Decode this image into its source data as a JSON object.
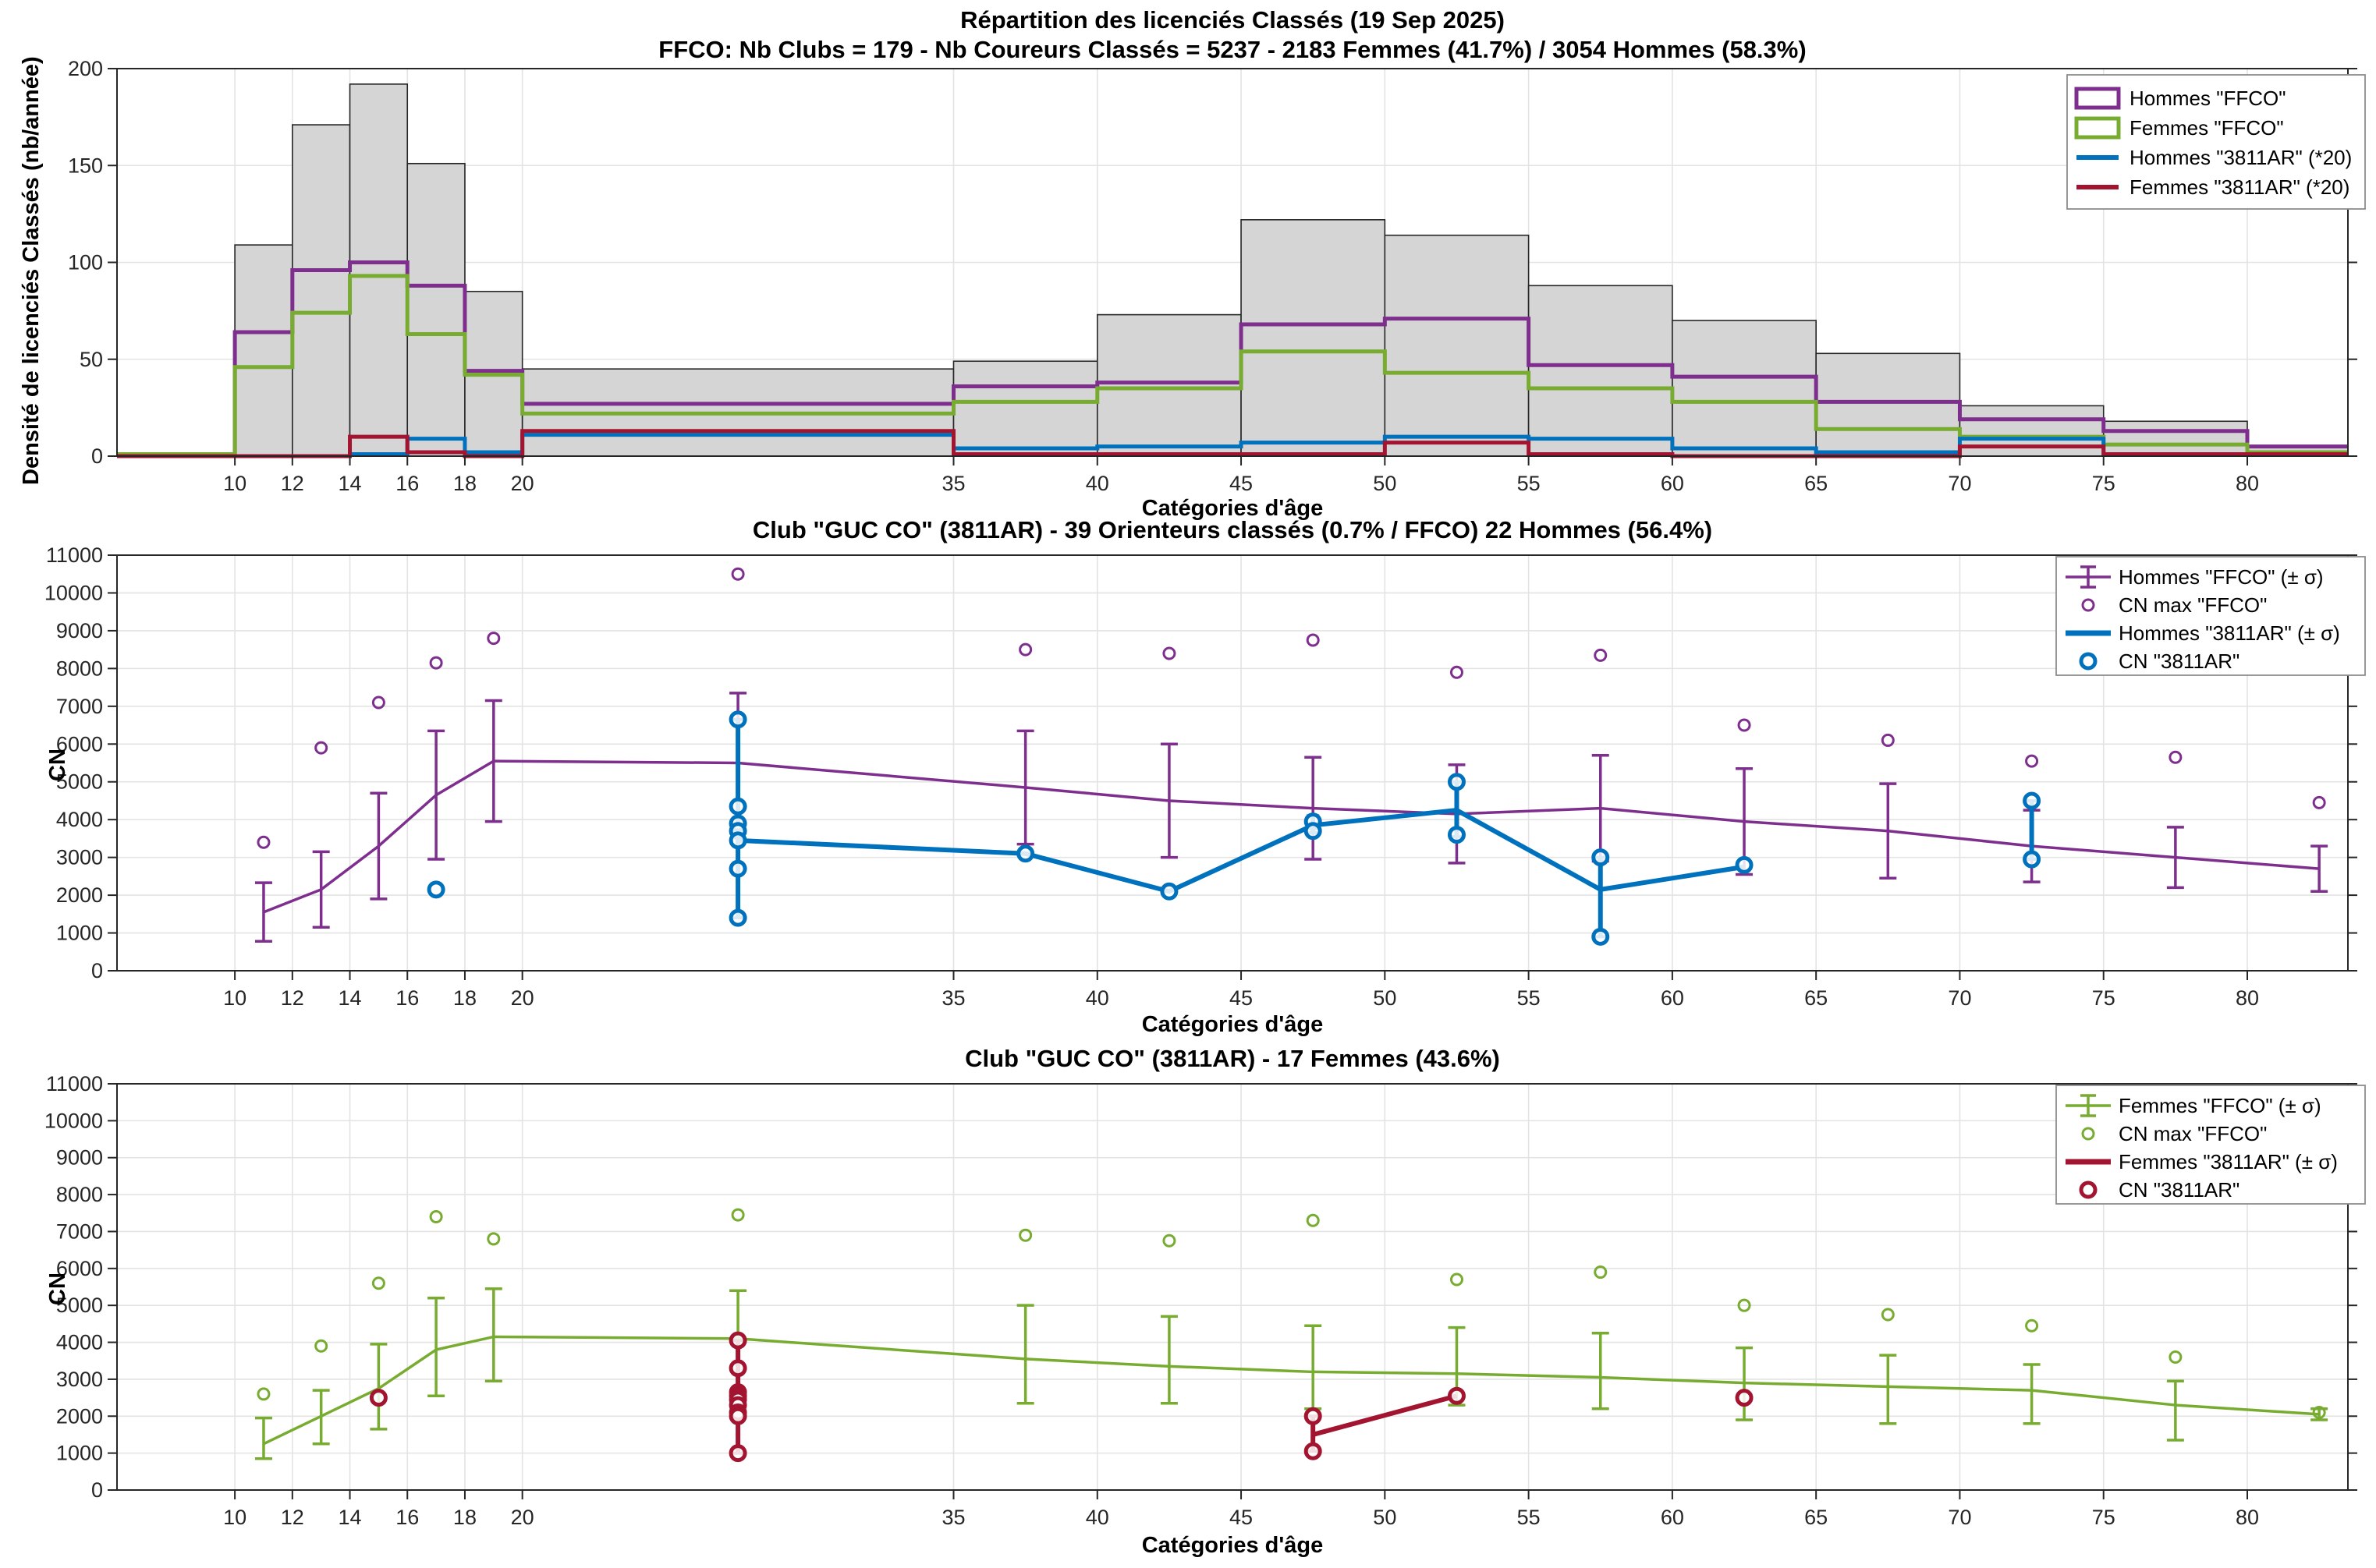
{
  "figure": {
    "bg": "#ffffff"
  },
  "colors": {
    "hommes": "#7E2F8E",
    "femmes": "#77AC30",
    "club_hommes": "#0072BD",
    "club_femmes": "#A2142F",
    "bar_fill": "#D5D5D5",
    "bar_edge": "#262626",
    "grid": "#E3E3E3",
    "axis": "#262626",
    "legend_border": "#8C8C8C"
  },
  "chart_data": [
    {
      "type": "bar",
      "title": "Répartition des licenciés Classés (19 Sep 2025)",
      "subtitle": "FFCO: Nb Clubs = 179   -   Nb Coureurs Classés = 5237   -   2183 Femmes (41.7%) / 3054 Hommes (58.3%)",
      "xlabel": "Catégories d'âge",
      "ylabel": "Densité de licenciés Classés (nb/année)",
      "xlim": [
        5.9,
        83.5
      ],
      "ylim": [
        0,
        200
      ],
      "xticks": [
        10,
        12,
        14,
        16,
        18,
        20,
        35,
        40,
        45,
        50,
        55,
        60,
        65,
        70,
        75,
        80
      ],
      "yticks": [
        0,
        50,
        100,
        150,
        200
      ],
      "grid": "on",
      "bin_edges": [
        5.9,
        10,
        12,
        14,
        16,
        18,
        20,
        35,
        40,
        45,
        50,
        55,
        60,
        65,
        70,
        75,
        80,
        83.5
      ],
      "series": [
        {
          "name": "Total FFCO",
          "style": "bar",
          "color_key": "bar_fill",
          "values": [
            1,
            109,
            171,
            192,
            151,
            85,
            45,
            49,
            73,
            122,
            114,
            88,
            70,
            53,
            26,
            18,
            5
          ]
        },
        {
          "name": "Hommes \"FFCO\"",
          "style": "step",
          "color_key": "hommes",
          "values": [
            1,
            64,
            96,
            100,
            88,
            44,
            27,
            36,
            38,
            68,
            71,
            47,
            41,
            28,
            19,
            13,
            5
          ]
        },
        {
          "name": "Femmes \"FFCO\"",
          "style": "step",
          "color_key": "femmes",
          "values": [
            1,
            46,
            74,
            93,
            63,
            42,
            22,
            28,
            35,
            54,
            43,
            35,
            28,
            14,
            10,
            6,
            2
          ]
        },
        {
          "name": "Hommes \"3811AR\" (*20)",
          "style": "step",
          "color_key": "club_hommes",
          "values": [
            0,
            0,
            0,
            1,
            9,
            2,
            11,
            4,
            5,
            7,
            10,
            9,
            4,
            2,
            9,
            1,
            1
          ]
        },
        {
          "name": "Femmes \"3811AR\" (*20)",
          "style": "step",
          "color_key": "club_femmes",
          "values": [
            0,
            0,
            0,
            10,
            2,
            0,
            13,
            1,
            1,
            1,
            7,
            1,
            0,
            0,
            5,
            1,
            1
          ]
        }
      ],
      "legend": {
        "position": "top-right",
        "entries": [
          {
            "marker": "box",
            "color_key": "hommes",
            "label": "Hommes \"FFCO\""
          },
          {
            "marker": "box",
            "color_key": "femmes",
            "label": "Femmes \"FFCO\""
          },
          {
            "marker": "line",
            "color_key": "club_hommes",
            "label": "Hommes \"3811AR\" (*20)"
          },
          {
            "marker": "line",
            "color_key": "club_femmes",
            "label": "Femmes \"3811AR\" (*20)"
          }
        ]
      }
    },
    {
      "type": "line",
      "title": "Club \"GUC CO\" (3811AR)  -  39 Orienteurs classés (0.7% / FFCO)  22 Hommes (56.4%)",
      "xlabel": "Catégories d'âge",
      "ylabel": "CN",
      "xlim": [
        5.9,
        83.5
      ],
      "ylim": [
        0,
        11000
      ],
      "xticks": [
        10,
        12,
        14,
        16,
        18,
        20,
        35,
        40,
        45,
        50,
        55,
        60,
        65,
        70,
        75,
        80
      ],
      "yticks": [
        0,
        1000,
        2000,
        3000,
        4000,
        5000,
        6000,
        7000,
        8000,
        9000,
        10000,
        11000
      ],
      "grid": "on",
      "ages": [
        11,
        13,
        15,
        17,
        19,
        27.5,
        37.5,
        42.5,
        47.5,
        52.5,
        57.5,
        62.5,
        67.5,
        72.5,
        77.5,
        82.5
      ],
      "ffco": {
        "name": "Hommes \"FFCO\" (± σ)",
        "color_key": "hommes",
        "mean": [
          1550,
          2150,
          3300,
          4650,
          5550,
          5500,
          4850,
          4500,
          4300,
          4150,
          4300,
          3950,
          3700,
          3300,
          3000,
          2700
        ],
        "lo": [
          780,
          1150,
          1900,
          2950,
          3950,
          3650,
          3350,
          3000,
          2950,
          2850,
          2900,
          2550,
          2450,
          2350,
          2200,
          2100
        ],
        "hi": [
          2330,
          3150,
          4700,
          6350,
          7150,
          7350,
          6350,
          6000,
          5650,
          5450,
          5700,
          5350,
          4950,
          4250,
          3800,
          3300
        ],
        "max": [
          3400,
          5900,
          7100,
          8150,
          8800,
          10500,
          8500,
          8400,
          8750,
          7900,
          8350,
          6500,
          6100,
          5550,
          5650,
          4450
        ]
      },
      "club": {
        "name": "Hommes \"3811AR\" (± σ)",
        "color_key": "club_hommes",
        "line": [
          [
            27.5,
            3450
          ],
          [
            37.5,
            3100
          ],
          [
            42.5,
            2100
          ],
          [
            47.5,
            3850
          ],
          [
            52.5,
            4250
          ],
          [
            57.5,
            2150
          ],
          [
            62.5,
            2750
          ]
        ],
        "bars": [
          [
            27.5,
            1400,
            6650
          ],
          [
            47.5,
            3650,
            4100
          ],
          [
            52.5,
            3550,
            5000
          ],
          [
            57.5,
            900,
            3000
          ],
          [
            72.5,
            2950,
            4500
          ]
        ],
        "points": [
          [
            17,
            2150
          ],
          [
            27.5,
            6650
          ],
          [
            27.5,
            4350
          ],
          [
            27.5,
            3900
          ],
          [
            27.5,
            3700
          ],
          [
            27.5,
            3450
          ],
          [
            27.5,
            2700
          ],
          [
            27.5,
            1400
          ],
          [
            37.5,
            3100
          ],
          [
            42.5,
            2100
          ],
          [
            47.5,
            3950
          ],
          [
            47.5,
            3700
          ],
          [
            52.5,
            5000
          ],
          [
            52.5,
            3600
          ],
          [
            57.5,
            3000
          ],
          [
            57.5,
            900
          ],
          [
            62.5,
            2800
          ],
          [
            72.5,
            4500
          ],
          [
            72.5,
            2950
          ]
        ]
      },
      "legend": {
        "position": "top-right",
        "entries": [
          {
            "marker": "errorbar",
            "color_key": "hommes",
            "label": "Hommes \"FFCO\" (± σ)"
          },
          {
            "marker": "circle",
            "color_key": "hommes",
            "label": "CN max \"FFCO\""
          },
          {
            "marker": "thickline",
            "color_key": "club_hommes",
            "label": "Hommes \"3811AR\" (± σ)"
          },
          {
            "marker": "circle-bold",
            "color_key": "club_hommes",
            "label": "CN \"3811AR\""
          }
        ]
      }
    },
    {
      "type": "line",
      "title": "Club \"GUC CO\" (3811AR)  -  17 Femmes (43.6%)",
      "xlabel": "Catégories d'âge",
      "ylabel": "CN",
      "xlim": [
        5.9,
        83.5
      ],
      "ylim": [
        0,
        11000
      ],
      "xticks": [
        10,
        12,
        14,
        16,
        18,
        20,
        35,
        40,
        45,
        50,
        55,
        60,
        65,
        70,
        75,
        80
      ],
      "yticks": [
        0,
        1000,
        2000,
        3000,
        4000,
        5000,
        6000,
        7000,
        8000,
        9000,
        10000,
        11000
      ],
      "grid": "on",
      "ages": [
        11,
        13,
        15,
        17,
        19,
        27.5,
        37.5,
        42.5,
        47.5,
        52.5,
        57.5,
        62.5,
        67.5,
        72.5,
        77.5,
        82.5
      ],
      "ffco": {
        "name": "Femmes \"FFCO\" (± σ)",
        "color_key": "femmes",
        "mean": [
          1250,
          2000,
          2750,
          3800,
          4150,
          4100,
          3550,
          3350,
          3200,
          3150,
          3050,
          2900,
          2800,
          2700,
          2300,
          2050
        ],
        "lo": [
          850,
          1250,
          1650,
          2550,
          2950,
          2700,
          2350,
          2350,
          2200,
          2300,
          2200,
          1900,
          1800,
          1800,
          1350,
          1900
        ],
        "hi": [
          1950,
          2700,
          3950,
          5200,
          5450,
          5400,
          5000,
          4700,
          4450,
          4400,
          4250,
          3850,
          3650,
          3400,
          2950,
          2200
        ],
        "max": [
          2600,
          3900,
          5600,
          7400,
          6800,
          7450,
          6900,
          6750,
          7300,
          5700,
          5900,
          5000,
          4750,
          4450,
          3600,
          2100
        ]
      },
      "club": {
        "name": "Femmes \"3811AR\" (± σ)",
        "color_key": "club_femmes",
        "line": [
          [
            47.5,
            1500
          ],
          [
            52.5,
            2550
          ]
        ],
        "bars": [
          [
            27.5,
            1000,
            4050
          ],
          [
            47.5,
            1050,
            2000
          ]
        ],
        "points": [
          [
            15,
            2500
          ],
          [
            27.5,
            4050
          ],
          [
            27.5,
            3300
          ],
          [
            27.5,
            2650
          ],
          [
            27.5,
            2550
          ],
          [
            27.5,
            2450
          ],
          [
            27.5,
            2300
          ],
          [
            27.5,
            2100
          ],
          [
            27.5,
            2000
          ],
          [
            27.5,
            1000
          ],
          [
            47.5,
            2000
          ],
          [
            47.5,
            1050
          ],
          [
            52.5,
            2550
          ],
          [
            62.5,
            2500
          ]
        ]
      },
      "legend": {
        "position": "top-right",
        "entries": [
          {
            "marker": "errorbar",
            "color_key": "femmes",
            "label": "Femmes \"FFCO\" (± σ)"
          },
          {
            "marker": "circle",
            "color_key": "femmes",
            "label": "CN max \"FFCO\""
          },
          {
            "marker": "thickline",
            "color_key": "club_femmes",
            "label": "Femmes \"3811AR\" (± σ)"
          },
          {
            "marker": "circle-bold",
            "color_key": "club_femmes",
            "label": "CN \"3811AR\""
          }
        ]
      }
    }
  ]
}
